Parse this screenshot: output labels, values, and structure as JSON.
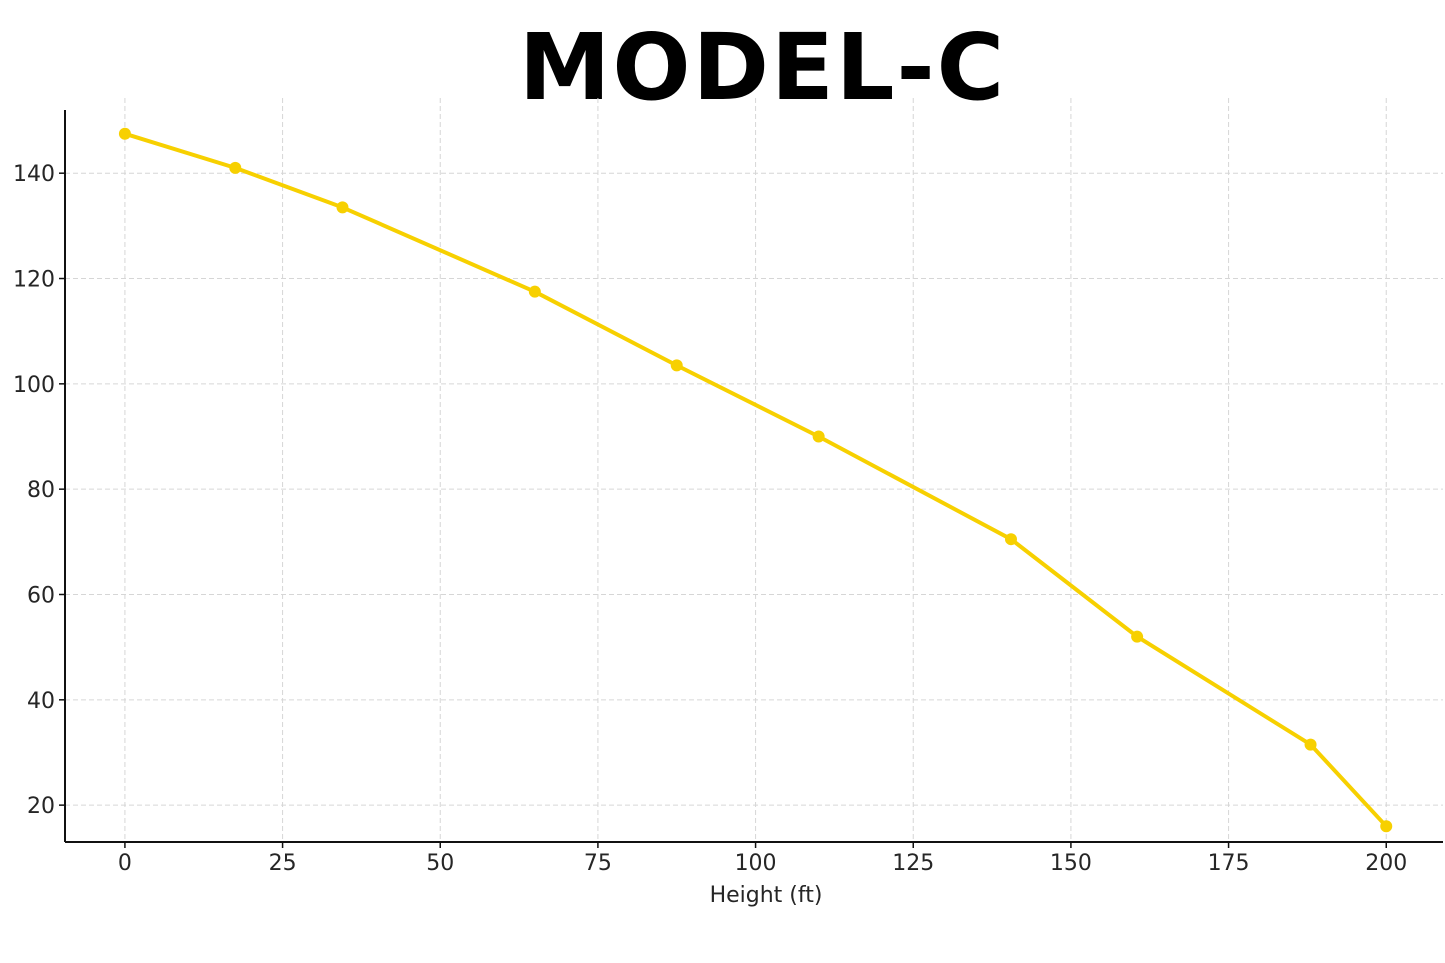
{
  "chart_data": {
    "type": "line",
    "title": "MODEL-C",
    "xlabel": "Height (ft)",
    "ylabel": "",
    "xlim": [
      -9.5,
      209
    ],
    "ylim": [
      13,
      152
    ],
    "x_ticks": [
      0,
      25,
      50,
      75,
      100,
      125,
      150,
      175,
      200
    ],
    "y_ticks": [
      20,
      40,
      60,
      80,
      100,
      120,
      140
    ],
    "grid": true,
    "legend": "none",
    "series": [
      {
        "color": "#f7d000",
        "marker": "circle",
        "points": [
          {
            "x": 0,
            "y": 147.5
          },
          {
            "x": 17.5,
            "y": 141.0
          },
          {
            "x": 34.5,
            "y": 133.5
          },
          {
            "x": 65,
            "y": 117.5
          },
          {
            "x": 87.5,
            "y": 103.5
          },
          {
            "x": 110,
            "y": 90.0
          },
          {
            "x": 140.5,
            "y": 70.5
          },
          {
            "x": 160.5,
            "y": 52.0
          },
          {
            "x": 188,
            "y": 31.5
          },
          {
            "x": 200,
            "y": 16.0
          }
        ]
      }
    ]
  }
}
